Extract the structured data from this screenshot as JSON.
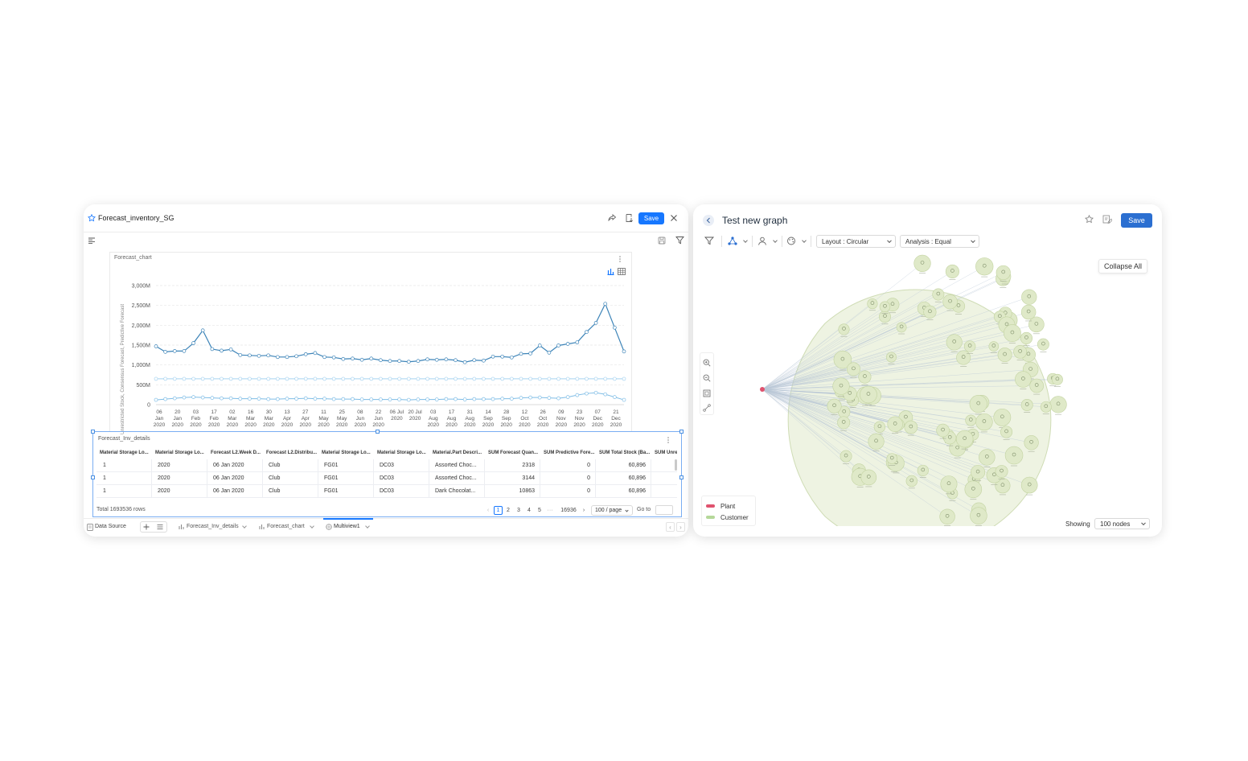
{
  "left": {
    "title": "Forecast_inventory_SG",
    "save_label": "Save",
    "chart_panel_title": "Forecast_chart",
    "table_panel_title": "Forecast_Inv_details",
    "table": {
      "headers": [
        "Material Storage Lo...",
        "Material Storage Lo...",
        "Forecast L2.Week D...",
        "Forecast L2.Distribu...",
        "Material Storage Lo...",
        "Material Storage Lo...",
        "Material.Part Descri...",
        "SUM Forecast Quan...",
        "SUM Predictive Fore...",
        "SUM Total Stock (Ba...",
        "SUM Unre"
      ],
      "rows": [
        [
          "1",
          "2020",
          "06 Jan 2020",
          "Club",
          "FG01",
          "DC03",
          "Assorted Choc...",
          "2318",
          "0",
          "60,896"
        ],
        [
          "1",
          "2020",
          "06 Jan 2020",
          "Club",
          "FG01",
          "DC03",
          "Assorted Choc...",
          "3144",
          "0",
          "60,896"
        ],
        [
          "1",
          "2020",
          "06 Jan 2020",
          "Club",
          "FG01",
          "DC03",
          "Dark Chocolat...",
          "10863",
          "0",
          "60,896"
        ]
      ],
      "total_rows": "Total 1693536 rows"
    },
    "pagination": {
      "pages": [
        "1",
        "2",
        "3",
        "4",
        "5"
      ],
      "ellipsis": "···",
      "last_page": "16936",
      "page_size": "100 / page",
      "goto_label": "Go to"
    },
    "bottom_tabs": {
      "data_source": "Data Source",
      "tabs": [
        "Forecast_Inv_details",
        "Forecast_chart",
        "Multiview1"
      ],
      "active_tab": "Multiview1"
    }
  },
  "chart_data": {
    "type": "line",
    "title": "",
    "ylabel": "Unrestricted Stock, Consensus Forecast, Predictive Forecast",
    "ylim": [
      0,
      3000
    ],
    "yticks": [
      "0",
      "500M",
      "1,000M",
      "1,500M",
      "2,000M",
      "2,500M",
      "3,000M"
    ],
    "x_tick_labels": [
      [
        "06",
        "Jan",
        "2020"
      ],
      [
        "20",
        "Jan",
        "2020"
      ],
      [
        "03",
        "Feb",
        "2020"
      ],
      [
        "17",
        "Feb",
        "2020"
      ],
      [
        "02",
        "Mar",
        "2020"
      ],
      [
        "16",
        "Mar",
        "2020"
      ],
      [
        "30",
        "Mar",
        "2020"
      ],
      [
        "13",
        "Apr",
        "2020"
      ],
      [
        "27",
        "Apr",
        "2020"
      ],
      [
        "11",
        "May",
        "2020"
      ],
      [
        "25",
        "May",
        "2020"
      ],
      [
        "08",
        "Jun",
        "2020"
      ],
      [
        "22",
        "Jun",
        "2020"
      ],
      [
        "06 Jul",
        "2020",
        ""
      ],
      [
        "20 Jul",
        "2020",
        ""
      ],
      [
        "03",
        "Aug",
        "2020"
      ],
      [
        "17",
        "Aug",
        "2020"
      ],
      [
        "31",
        "Aug",
        "2020"
      ],
      [
        "14",
        "Sep",
        "2020"
      ],
      [
        "28",
        "Sep",
        "2020"
      ],
      [
        "12",
        "Oct",
        "2020"
      ],
      [
        "26",
        "Oct",
        "2020"
      ],
      [
        "09",
        "Nov",
        "2020"
      ],
      [
        "23",
        "Nov",
        "2020"
      ],
      [
        "07",
        "Dec",
        "2020"
      ],
      [
        "21",
        "Dec",
        "2020"
      ]
    ],
    "series": [
      {
        "color": "#3d84b8",
        "values": [
          1470,
          1330,
          1350,
          1350,
          1550,
          1870,
          1400,
          1360,
          1390,
          1250,
          1240,
          1230,
          1240,
          1200,
          1200,
          1220,
          1270,
          1300,
          1200,
          1190,
          1150,
          1160,
          1130,
          1160,
          1120,
          1100,
          1100,
          1080,
          1100,
          1140,
          1130,
          1140,
          1120,
          1070,
          1120,
          1110,
          1210,
          1210,
          1190,
          1280,
          1290,
          1490,
          1310,
          1490,
          1530,
          1570,
          1830,
          2060,
          2540,
          1940,
          1340
        ]
      },
      {
        "color": "#a7d3f0",
        "values": [
          650,
          650,
          650,
          650,
          650,
          650,
          650,
          650,
          650,
          650,
          650,
          650,
          650,
          650,
          650,
          650,
          650,
          650,
          650,
          650,
          650,
          650,
          650,
          650,
          650,
          650,
          650,
          650,
          650,
          650,
          650,
          650,
          650,
          650,
          650,
          650,
          650,
          650,
          650,
          650,
          650,
          650,
          650,
          650,
          650,
          650,
          650,
          650,
          650,
          650,
          650
        ]
      },
      {
        "color": "#7fbde6",
        "values": [
          120,
          140,
          160,
          180,
          190,
          180,
          170,
          160,
          160,
          150,
          150,
          150,
          140,
          140,
          150,
          150,
          160,
          150,
          150,
          140,
          140,
          140,
          130,
          130,
          130,
          130,
          130,
          120,
          130,
          130,
          130,
          140,
          140,
          130,
          140,
          140,
          140,
          150,
          150,
          170,
          180,
          180,
          170,
          160,
          190,
          240,
          280,
          300,
          260,
          190,
          120
        ]
      }
    ]
  },
  "right": {
    "title": "Test new graph",
    "save_label": "Save",
    "layout_select": "Layout : Circular",
    "analysis_select": "Analysis : Equal",
    "collapse_label": "Collapse All",
    "legend": [
      {
        "label": "Plant",
        "color": "#e0526e"
      },
      {
        "label": "Customer",
        "color": "#b5d89a"
      }
    ],
    "showing_label": "Showing",
    "nodes_select": "100 nodes"
  }
}
